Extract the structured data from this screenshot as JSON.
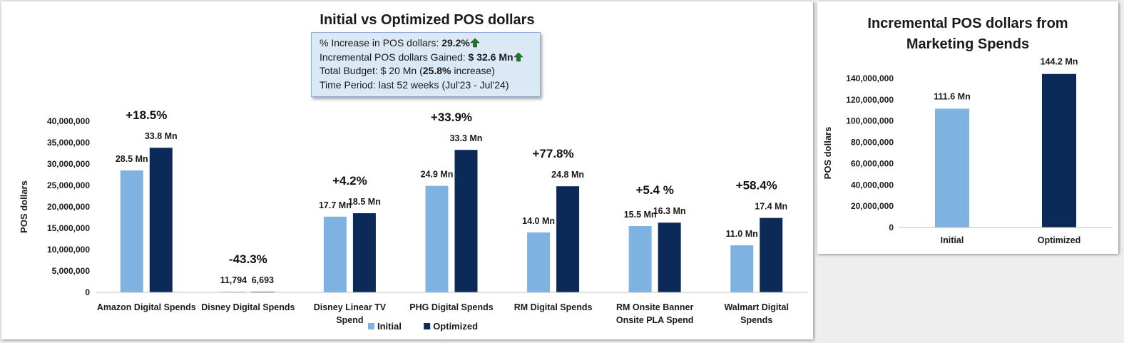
{
  "chart_data": [
    {
      "type": "bar",
      "title": "Initial vs Optimized POS dollars",
      "xlabel": "",
      "ylabel": "POS dollars",
      "ylim": [
        0,
        40000000
      ],
      "yticks": [
        0,
        5000000,
        10000000,
        15000000,
        20000000,
        25000000,
        30000000,
        35000000,
        40000000
      ],
      "ytick_labels": [
        "0",
        "5,000,000",
        "10,000,000",
        "15,000,000",
        "20,000,000",
        "25,000,000",
        "30,000,000",
        "35,000,000",
        "40,000,000"
      ],
      "categories": [
        [
          "Amazon Digital Spends"
        ],
        [
          "Disney Digital Spends"
        ],
        [
          "Disney Linear TV",
          "Spend"
        ],
        [
          "PHG Digital Spends"
        ],
        [
          "RM Digital Spends"
        ],
        [
          "RM Onsite Banner",
          "Onsite PLA Spend"
        ],
        [
          "Walmart Digital",
          "Spends"
        ]
      ],
      "series": [
        {
          "name": "Initial",
          "color": "#7eb3e1",
          "values": [
            28500000,
            11794,
            17700000,
            24900000,
            14000000,
            15500000,
            11000000
          ],
          "labels": [
            "28.5 Mn",
            "11,794",
            "17.7 Mn",
            "24.9 Mn",
            "14.0 Mn",
            "15.5 Mn",
            "11.0 Mn"
          ]
        },
        {
          "name": "Optimized",
          "color": "#0c2a57",
          "values": [
            33800000,
            6693,
            18500000,
            33300000,
            24800000,
            16300000,
            17400000
          ],
          "labels": [
            "33.8 Mn",
            "6,693",
            "18.5 Mn",
            "33.3 Mn",
            "24.8 Mn",
            "16.3 Mn",
            "17.4 Mn"
          ]
        }
      ],
      "pct_change": [
        "+18.5%",
        "-43.3%",
        "+4.2%",
        "+33.9%",
        "+77.8%",
        "+5.4 %",
        "+58.4%"
      ],
      "legend": "bottom",
      "grid": false
    },
    {
      "type": "bar",
      "title": [
        "Incremental POS dollars from",
        "Marketing Spends"
      ],
      "xlabel": "",
      "ylabel": "POS dollars",
      "ylim": [
        0,
        140000000
      ],
      "yticks": [
        0,
        20000000,
        40000000,
        60000000,
        80000000,
        100000000,
        120000000,
        140000000
      ],
      "ytick_labels": [
        "0",
        "20,000,000",
        "40,000,000",
        "60,000,000",
        "80,000,000",
        "100,000,000",
        "120,000,000",
        "140,000,000"
      ],
      "categories": [
        [
          "Initial"
        ],
        [
          "Optimized"
        ]
      ],
      "values": [
        111600000,
        144200000
      ],
      "labels": [
        "111.6 Mn",
        "144.2 Mn"
      ],
      "colors": [
        "#7eb3e1",
        "#0c2a57"
      ],
      "grid": false
    }
  ],
  "info_box": {
    "line1_label": "% Increase in POS dollars: ",
    "line1_value": "29.2%",
    "line2_label": "Incremental POS dollars Gained: ",
    "line2_value": "$ 32.6 Mn",
    "line3_label": "Total Budget: $ 20 Mn (",
    "line3_value": "25.8%",
    "line3_suffix": " increase)",
    "line4_label": "Time Period: last 52 weeks (Jul'23 - Jul'24)",
    "arrow_color": "#1f7a2e"
  }
}
